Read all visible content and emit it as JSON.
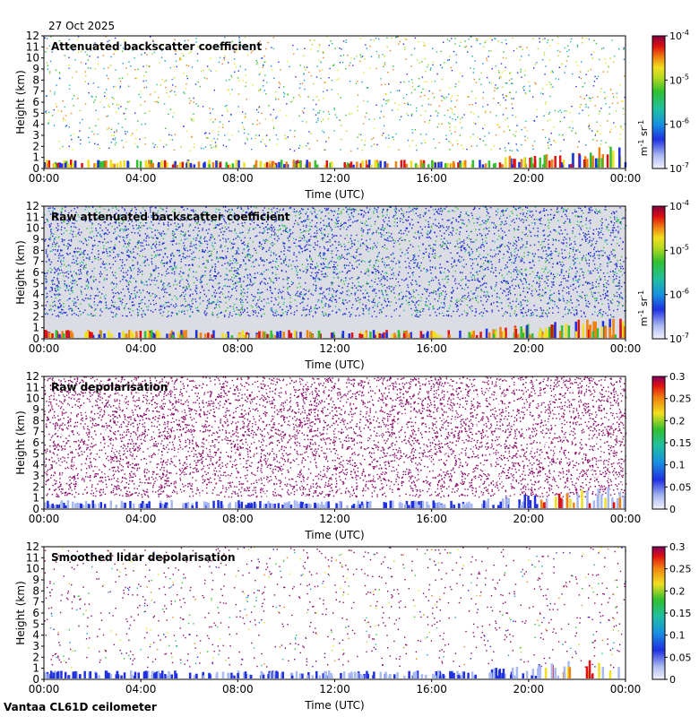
{
  "header": {
    "date": "27 Oct 2025"
  },
  "footer": {
    "station": "Vantaa CL61D ceilometer"
  },
  "chart_data": [
    {
      "type": "heatmap",
      "title": "Attenuated backscatter coefficient",
      "xlabel": "Time (UTC)",
      "ylabel": "Height (km)",
      "xticks": [
        "00:00",
        "04:00",
        "08:00",
        "12:00",
        "16:00",
        "20:00",
        "00:00"
      ],
      "yticks": [
        "0",
        "1",
        "2",
        "3",
        "4",
        "5",
        "6",
        "7",
        "8",
        "9",
        "10",
        "11",
        "12"
      ],
      "ylim": [
        0,
        12
      ],
      "colorbar": {
        "scale": "log",
        "ticks": [
          "10",
          "10",
          "10",
          "10"
        ],
        "exponents": [
          "-7",
          "-6",
          "-5",
          "-4"
        ],
        "unit": "m",
        "unit_exp": "-1",
        "unit2": "sr",
        "unit2_exp": "-1"
      }
    },
    {
      "type": "heatmap",
      "title": "Raw attenuated backscatter coefficient",
      "xlabel": "Time (UTC)",
      "ylabel": "Height (km)",
      "xticks": [
        "00:00",
        "04:00",
        "08:00",
        "12:00",
        "16:00",
        "20:00",
        "00:00"
      ],
      "yticks": [
        "0",
        "1",
        "2",
        "3",
        "4",
        "5",
        "6",
        "7",
        "8",
        "9",
        "10",
        "11",
        "12"
      ],
      "ylim": [
        0,
        12
      ],
      "colorbar": {
        "scale": "log",
        "ticks": [
          "10",
          "10",
          "10",
          "10"
        ],
        "exponents": [
          "-7",
          "-6",
          "-5",
          "-4"
        ],
        "unit": "m",
        "unit_exp": "-1",
        "unit2": "sr",
        "unit2_exp": "-1"
      }
    },
    {
      "type": "heatmap",
      "title": "Raw depolarisation",
      "xlabel": "Time (UTC)",
      "ylabel": "Height (km)",
      "xticks": [
        "00:00",
        "04:00",
        "08:00",
        "12:00",
        "16:00",
        "20:00",
        "00:00"
      ],
      "yticks": [
        "0",
        "1",
        "2",
        "3",
        "4",
        "5",
        "6",
        "7",
        "8",
        "9",
        "10",
        "11",
        "12"
      ],
      "ylim": [
        0,
        12
      ],
      "colorbar": {
        "scale": "linear",
        "ticks": [
          "0",
          "0.05",
          "0.1",
          "0.15",
          "0.2",
          "0.25",
          "0.3"
        ],
        "range": [
          0,
          0.3
        ]
      }
    },
    {
      "type": "heatmap",
      "title": "Smoothed lidar depolarisation",
      "xlabel": "Time (UTC)",
      "ylabel": "Height (km)",
      "xticks": [
        "00:00",
        "04:00",
        "08:00",
        "12:00",
        "16:00",
        "20:00",
        "00:00"
      ],
      "yticks": [
        "0",
        "1",
        "2",
        "3",
        "4",
        "5",
        "6",
        "7",
        "8",
        "9",
        "10",
        "11",
        "12"
      ],
      "ylim": [
        0,
        12
      ],
      "colorbar": {
        "scale": "linear",
        "ticks": [
          "0",
          "0.05",
          "0.1",
          "0.15",
          "0.2",
          "0.25",
          "0.3"
        ],
        "range": [
          0,
          0.3
        ]
      }
    }
  ]
}
